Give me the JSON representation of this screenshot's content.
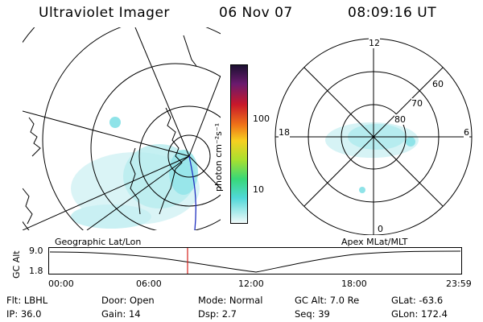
{
  "header": {
    "instrument": "Ultraviolet Imager",
    "date": "06 Nov 07",
    "time": "08:09:16 UT"
  },
  "left_map": {
    "caption": "Geographic Lat/Lon"
  },
  "right_map": {
    "caption": "Apex MLat/MLT",
    "mlt_labels": {
      "top": "12",
      "left": "18",
      "right": "6",
      "bottom": "0"
    },
    "lat_labels": [
      "60",
      "70",
      "80"
    ]
  },
  "colorbar": {
    "unit_label": "photon cm⁻²s⁻¹",
    "ticks": [
      "100",
      "10"
    ]
  },
  "altitude_plot": {
    "ylabel": "GC Alt",
    "yticks": [
      "9.0",
      "1.8"
    ],
    "xticks": [
      "00:00",
      "06:00",
      "12:00",
      "18:00",
      "23:59"
    ]
  },
  "footer": {
    "row1": [
      {
        "label": "Flt:",
        "value": "LBHL"
      },
      {
        "label": "Door:",
        "value": "Open"
      },
      {
        "label": "Mode:",
        "value": "Normal"
      },
      {
        "label": "GC Alt:",
        "value": "7.0 Re"
      },
      {
        "label": "GLat:",
        "value": "-63.6"
      }
    ],
    "row2": [
      {
        "label": "IP:",
        "value": "36.0"
      },
      {
        "label": "Gain:",
        "value": "14"
      },
      {
        "label": "Dsp:",
        "value": "2.7"
      },
      {
        "label": "Seq:",
        "value": "39"
      },
      {
        "label": "GLon:",
        "value": "172.4"
      }
    ]
  },
  "colors": {
    "aurora": "#8fe3e8",
    "marker": "#d4201b",
    "terminator": "#2030c0"
  }
}
